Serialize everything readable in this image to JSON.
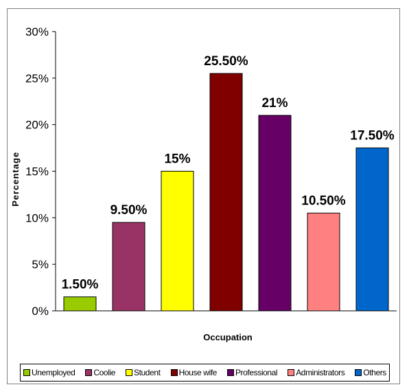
{
  "chart_data": {
    "type": "bar",
    "categories": [
      "Unemployed",
      "Coolie",
      "Student",
      "House wife",
      "Professional",
      "Administrators",
      "Others"
    ],
    "values": [
      1.5,
      9.5,
      15,
      25.5,
      21,
      10.5,
      17.5
    ],
    "data_labels": [
      "1.50%",
      "9.50%",
      "15%",
      "25.50%",
      "21%",
      "10.50%",
      "17.50%"
    ],
    "colors": [
      "#99CC00",
      "#993366",
      "#FFFF00",
      "#800000",
      "#660066",
      "#FF8080",
      "#0066CC"
    ],
    "xlabel": "Occupation",
    "ylabel": "Percentage",
    "ylim": [
      0,
      30
    ],
    "yticks": [
      0,
      5,
      10,
      15,
      20,
      25,
      30
    ],
    "ytick_labels": [
      "0%",
      "5%",
      "10%",
      "15%",
      "20%",
      "25%",
      "30%"
    ],
    "grid": false,
    "legend": "bottom"
  }
}
